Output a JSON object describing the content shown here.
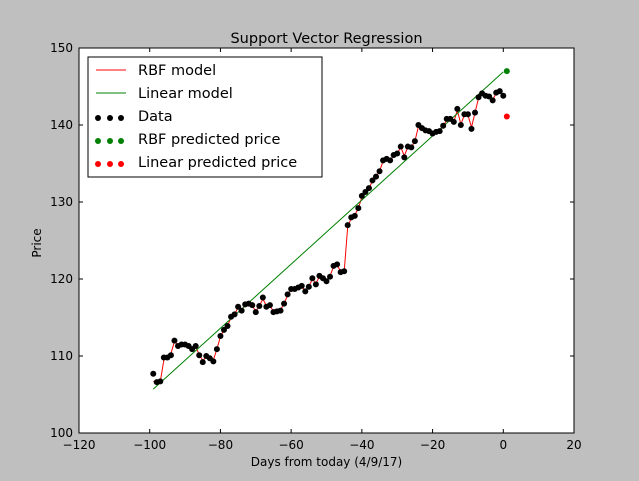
{
  "chart_data": {
    "type": "scatter",
    "title": "Support Vector Regression",
    "xlabel": "Days from today (4/9/17)",
    "ylabel": "Price",
    "xlim": [
      -120,
      20
    ],
    "ylim": [
      100,
      150
    ],
    "xticks": [
      -120,
      -100,
      -80,
      -60,
      -40,
      -20,
      0,
      20
    ],
    "yticks": [
      100,
      110,
      120,
      130,
      140,
      150
    ],
    "xtick_labels": [
      "−120",
      "−100",
      "−80",
      "−60",
      "−40",
      "−20",
      "0",
      "20"
    ],
    "ytick_labels": [
      "100",
      "110",
      "120",
      "130",
      "140",
      "150"
    ],
    "grid": false,
    "legend_position": "top-left",
    "colors": {
      "rbf": "#ff0000",
      "linear": "#008000",
      "data": "#000000",
      "rbf_pred": "#008000",
      "linear_pred": "#ff0000",
      "background": "#bfbfbf",
      "plot_bg": "#ffffff"
    },
    "legend": [
      {
        "label": "RBF model",
        "kind": "line",
        "color": "#ff0000"
      },
      {
        "label": "Linear model",
        "kind": "line",
        "color": "#008000"
      },
      {
        "label": "Data",
        "kind": "points",
        "color": "#000000"
      },
      {
        "label": "RBF predicted price",
        "kind": "points",
        "color": "#008000"
      },
      {
        "label": "Linear predicted price",
        "kind": "points",
        "color": "#ff0000"
      }
    ],
    "data_x": [
      -99,
      -98,
      -97,
      -96,
      -95,
      -94,
      -93,
      -92,
      -91,
      -90,
      -89,
      -88,
      -87,
      -86,
      -85,
      -84,
      -83,
      -82,
      -81,
      -80,
      -79,
      -78,
      -77,
      -76,
      -75,
      -74,
      -73,
      -72,
      -71,
      -70,
      -69,
      -68,
      -67,
      -66,
      -65,
      -64,
      -63,
      -62,
      -61,
      -60,
      -59,
      -58,
      -57,
      -56,
      -55,
      -54,
      -53,
      -52,
      -51,
      -50,
      -49,
      -48,
      -47,
      -46,
      -45,
      -44,
      -43,
      -42,
      -41,
      -40,
      -39,
      -38,
      -37,
      -36,
      -35,
      -34,
      -33,
      -32,
      -31,
      -30,
      -29,
      -28,
      -27,
      -26,
      -25,
      -24,
      -23,
      -22,
      -21,
      -20,
      -19,
      -18,
      -17,
      -16,
      -15,
      -14,
      -13,
      -12,
      -11,
      -10,
      -9,
      -8,
      -7,
      -6,
      -5,
      -4,
      -3,
      -2,
      -1,
      0
    ],
    "data_y": [
      107.7,
      106.6,
      106.7,
      109.8,
      109.8,
      110.1,
      112.0,
      111.3,
      111.5,
      111.5,
      111.3,
      110.9,
      111.3,
      110.1,
      109.2,
      110.0,
      109.7,
      109.3,
      110.9,
      112.6,
      113.4,
      113.9,
      115.1,
      115.4,
      116.4,
      115.9,
      116.7,
      116.8,
      116.6,
      115.7,
      116.5,
      117.6,
      116.4,
      116.6,
      115.7,
      115.8,
      115.9,
      116.8,
      118.0,
      118.7,
      118.7,
      118.9,
      119.1,
      118.4,
      119.0,
      120.1,
      119.3,
      120.4,
      120.1,
      119.7,
      120.3,
      121.7,
      121.9,
      120.9,
      121.0,
      127.0,
      128.0,
      128.2,
      129.2,
      130.8,
      131.3,
      131.8,
      132.8,
      133.3,
      134.0,
      135.4,
      135.6,
      135.4,
      136.1,
      136.3,
      137.2,
      135.8,
      137.2,
      137.1,
      137.9,
      140.0,
      139.6,
      139.3,
      139.2,
      138.9,
      139.1,
      139.2,
      139.9,
      140.8,
      140.8,
      140.4,
      142.1,
      140.0,
      141.4,
      141.4,
      139.5,
      141.6,
      143.6,
      144.1,
      143.8,
      143.7,
      143.2,
      144.2,
      144.4,
      143.8
    ],
    "rbf_model_y": [
      106.7,
      106.6,
      106.7,
      109.5,
      109.9,
      110.3,
      111.9,
      111.4,
      111.4,
      111.4,
      111.2,
      110.9,
      111.2,
      110.2,
      109.4,
      109.9,
      109.7,
      109.5,
      110.9,
      112.5,
      113.4,
      113.9,
      115.0,
      115.4,
      116.3,
      116.0,
      116.6,
      116.8,
      116.5,
      115.8,
      116.5,
      117.4,
      116.5,
      116.5,
      115.8,
      115.8,
      116.0,
      116.8,
      117.9,
      118.6,
      118.7,
      118.9,
      119.0,
      118.5,
      119.0,
      120.0,
      119.4,
      120.3,
      120.1,
      119.8,
      120.4,
      121.6,
      121.8,
      121.0,
      121.0,
      126.8,
      127.9,
      128.3,
      129.2,
      130.6,
      131.3,
      131.8,
      132.7,
      133.3,
      134.0,
      135.3,
      135.6,
      135.4,
      136.0,
      136.3,
      137.1,
      136.0,
      137.1,
      137.1,
      137.9,
      139.8,
      139.5,
      139.3,
      139.1,
      139.0,
      139.1,
      139.2,
      139.8,
      140.7,
      140.7,
      140.4,
      141.9,
      140.1,
      141.3,
      141.3,
      139.7,
      141.6,
      143.5,
      144.0,
      143.8,
      143.7,
      143.3,
      144.1,
      144.3,
      143.8
    ],
    "linear_model": {
      "x": [
        -99,
        0
      ],
      "y": [
        105.7,
        146.9
      ]
    },
    "rbf_predicted_price": {
      "x": 1,
      "y": 147.0
    },
    "linear_predicted_price": {
      "x": 1,
      "y": 141.1
    }
  }
}
